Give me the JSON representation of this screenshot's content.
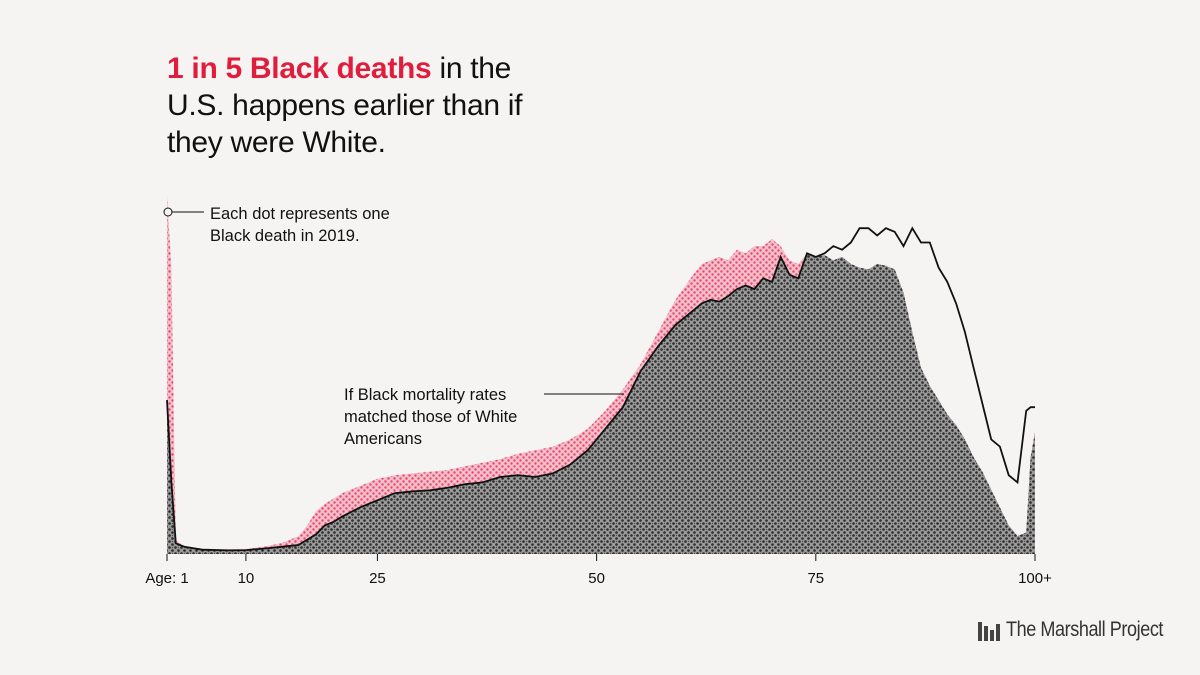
{
  "headline": {
    "highlight": "1 in 5 Black deaths",
    "rest": " in the U.S. happens earlier than if they were White."
  },
  "annotations": {
    "dot_note": "Each dot represents one Black death in 2019.",
    "line_note": "If Black mortality rates matched those of White Americans"
  },
  "colors": {
    "excess": "#e8476a",
    "expected": "#3a3a3a",
    "line": "#111111",
    "accent": "#e01d3c",
    "background": "#f5f4f3"
  },
  "logo": {
    "text": "The Marshall Project",
    "icon": "marshall-project-logo-icon"
  },
  "chart_data": {
    "type": "area",
    "title": "",
    "xlabel": "",
    "ylabel": "",
    "grid": false,
    "legend": "none",
    "x_ticks": [
      {
        "value": 0,
        "label": "Age: 1"
      },
      {
        "value": 9,
        "label": "10"
      },
      {
        "value": 24,
        "label": "25"
      },
      {
        "value": 49,
        "label": "50"
      },
      {
        "value": 74,
        "label": "75"
      },
      {
        "value": 99,
        "label": "100+"
      }
    ],
    "xlim": [
      0,
      99
    ],
    "ylim": [
      0,
      100
    ],
    "series": [
      {
        "key": "actual",
        "x": [
          0,
          0.5,
          1,
          2,
          4,
          7,
          9,
          11,
          13,
          15,
          16,
          17,
          18,
          19,
          20,
          22,
          24,
          26,
          28,
          30,
          32,
          34,
          36,
          38,
          40,
          42,
          44,
          46,
          48,
          50,
          52,
          54,
          56,
          58,
          60,
          61,
          62,
          63,
          64,
          65,
          66,
          67,
          68,
          69,
          70,
          71,
          72,
          73,
          74,
          75,
          76,
          77,
          78,
          79,
          80,
          81,
          82,
          83,
          84,
          85,
          86,
          87,
          88,
          89,
          90,
          91,
          92,
          93,
          94,
          95,
          96,
          97,
          98,
          98.5,
          99
        ],
        "values": [
          100,
          80,
          4,
          2,
          1.5,
          1.3,
          1.4,
          2,
          3,
          5,
          8,
          12,
          14,
          15.5,
          17,
          19,
          21,
          22,
          22.5,
          23,
          23.5,
          24.5,
          25.5,
          26.5,
          28,
          29,
          30,
          32,
          35,
          40,
          46,
          53,
          62,
          71,
          78,
          81,
          82,
          83,
          82,
          85,
          84,
          86,
          86,
          88,
          86,
          82,
          81,
          84,
          83,
          83.5,
          82,
          83,
          81,
          80,
          79.5,
          81,
          80.5,
          79.5,
          73,
          62,
          52,
          47,
          43,
          39,
          36,
          32,
          27,
          23,
          18,
          13,
          8,
          5,
          6,
          27,
          34
        ]
      },
      {
        "key": "expected",
        "x": [
          0,
          0.5,
          1,
          2,
          4,
          7,
          9,
          11,
          13,
          15,
          16,
          17,
          18,
          19,
          20,
          22,
          24,
          26,
          28,
          30,
          32,
          34,
          36,
          38,
          40,
          42,
          44,
          46,
          48,
          50,
          52,
          54,
          56,
          58,
          60,
          61,
          62,
          63,
          64,
          65,
          66,
          67,
          68,
          69,
          70,
          71,
          72,
          73,
          74,
          75,
          76,
          77,
          78,
          79,
          80,
          81,
          82,
          83,
          84,
          85,
          86,
          87,
          88,
          89,
          90,
          91,
          92,
          93,
          94,
          95,
          96,
          97,
          98,
          98.5,
          99
        ],
        "values": [
          43,
          20,
          3,
          2,
          1.2,
          1,
          1.1,
          1.5,
          2,
          2.5,
          4,
          5.5,
          8,
          9,
          10.5,
          13,
          15,
          17,
          17.5,
          17.8,
          18.5,
          19.5,
          20,
          21.5,
          22,
          21.5,
          22.5,
          25,
          29,
          35,
          41,
          51,
          58,
          64,
          68,
          70,
          71,
          70.5,
          72,
          74,
          75,
          74,
          77,
          76,
          83,
          78,
          77,
          84,
          83,
          84,
          86,
          85,
          87,
          91,
          91,
          89,
          91,
          90,
          86,
          91,
          87,
          87,
          80,
          76,
          70,
          62,
          52,
          42,
          32,
          30,
          22,
          20,
          40,
          41,
          41
        ]
      }
    ]
  }
}
